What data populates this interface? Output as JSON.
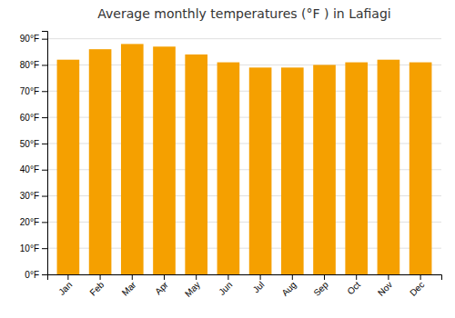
{
  "chart_data": {
    "type": "bar",
    "title": "Average monthly temperatures (°F ) in Lafiagi",
    "categories": [
      "Jan",
      "Feb",
      "Mar",
      "Apr",
      "May",
      "Jun",
      "Jul",
      "Aug",
      "Sep",
      "Oct",
      "Nov",
      "Dec"
    ],
    "values": [
      82,
      86,
      88,
      87,
      84,
      81,
      79,
      79,
      80,
      81,
      82,
      81
    ],
    "color": "#F5A000",
    "ylim": [
      0,
      93
    ],
    "yticks": [
      {
        "value": 0,
        "label": "0°F"
      },
      {
        "value": 10,
        "label": "10°F"
      },
      {
        "value": 20,
        "label": "20°F"
      },
      {
        "value": 30,
        "label": "30°F"
      },
      {
        "value": 40,
        "label": "40°F"
      },
      {
        "value": 50,
        "label": "50°F"
      },
      {
        "value": 60,
        "label": "60°F"
      },
      {
        "value": 70,
        "label": "70°F"
      },
      {
        "value": 80,
        "label": "80°F"
      },
      {
        "value": 90,
        "label": "90°F"
      }
    ],
    "grid": true
  }
}
